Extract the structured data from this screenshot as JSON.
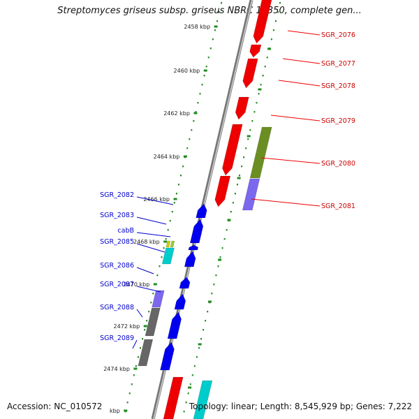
{
  "title": "Streptomyces griseus subsp. griseus NBRC 13350, complete gen...",
  "footer": {
    "accession": "Accession: NC_010572",
    "summary": "Topology: linear; Length: 8,545,929 bp; Genes: 7,222"
  },
  "ruler": {
    "labels": [
      "2458 kbp",
      "2460 kbp",
      "2462 kbp",
      "2464 kbp",
      "2466 kbp",
      "2468 kbp",
      "2470 kbp",
      "2472 kbp",
      "2474 kbp",
      "kbp"
    ]
  },
  "genes_right": [
    "SGR_2076",
    "SGR_2077",
    "SGR_2078",
    "SGR_2079",
    "SGR_2080",
    "SGR_2081"
  ],
  "genes_left": [
    "SGR_2082",
    "SGR_2083",
    "cabB",
    "SGR_2085",
    "SGR_2086",
    "SGR_2087",
    "SGR_2088",
    "SGR_2089"
  ],
  "colors": {
    "forward_gene": "#ee0000",
    "reverse_gene": "#0000ee",
    "olive_gene": "#6b8e23",
    "lavender_gene": "#7b68ee",
    "cyan_gene": "#00cccc",
    "gray_gene": "#666666",
    "ruler_tick": "#228b22",
    "backbone": "#888888"
  }
}
